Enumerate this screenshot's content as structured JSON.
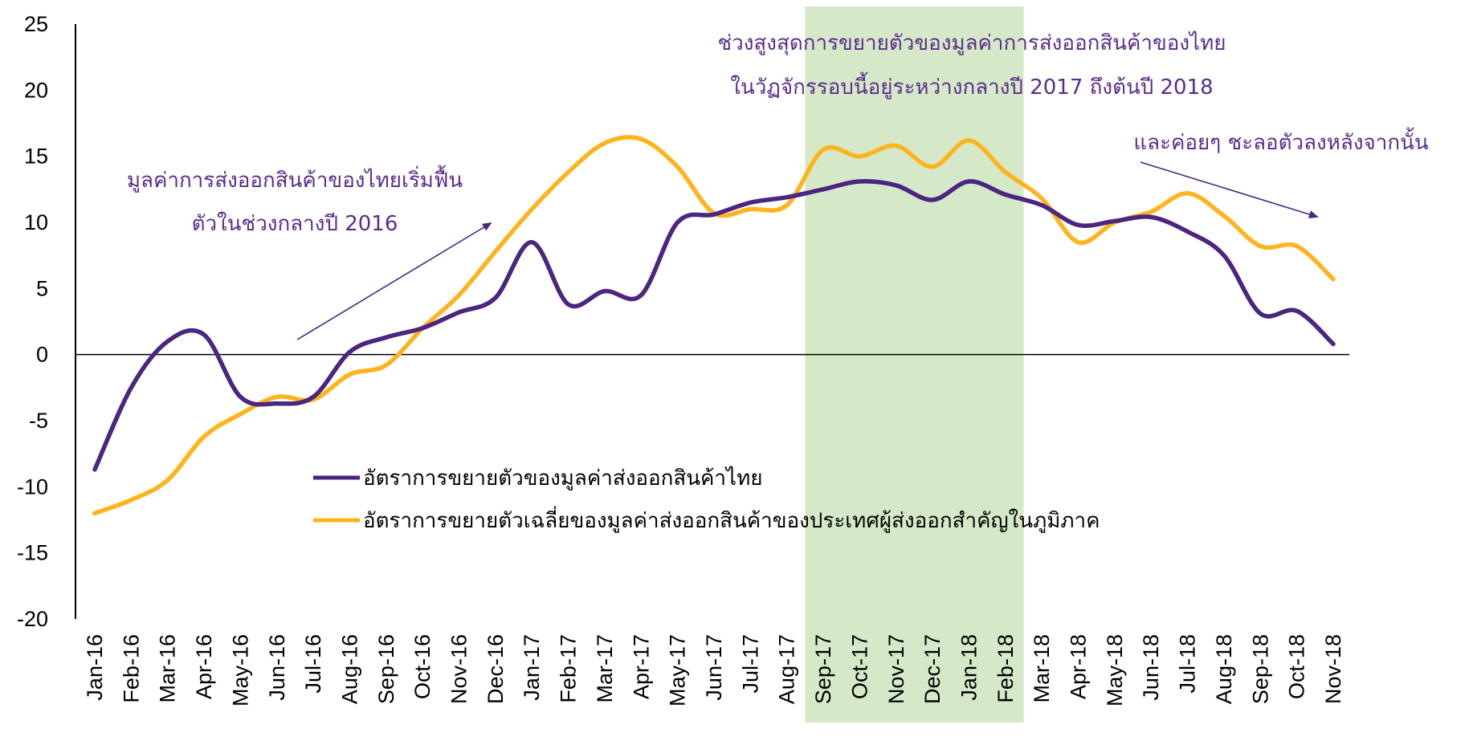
{
  "chart_data": {
    "type": "line",
    "categories": [
      "Jan-16",
      "Feb-16",
      "Mar-16",
      "Apr-16",
      "May-16",
      "Jun-16",
      "Jul-16",
      "Aug-16",
      "Sep-16",
      "Oct-16",
      "Nov-16",
      "Dec-16",
      "Jan-17",
      "Feb-17",
      "Mar-17",
      "Apr-17",
      "May-17",
      "Jun-17",
      "Jul-17",
      "Aug-17",
      "Sep-17",
      "Oct-17",
      "Nov-17",
      "Dec-17",
      "Jan-18",
      "Feb-18",
      "Mar-18",
      "Apr-18",
      "May-18",
      "Jun-18",
      "Jul-18",
      "Aug-18",
      "Sep-18",
      "Oct-18",
      "Nov-18"
    ],
    "series": [
      {
        "name": "อัตราการขยายตัวของมูลค่าส่งออกสินค้าไทย",
        "color": "#4B2580",
        "values": [
          -8.7,
          -2.5,
          1.0,
          1.5,
          -3.2,
          -3.7,
          -3.2,
          0.2,
          1.3,
          2.0,
          3.2,
          4.3,
          8.5,
          3.8,
          4.8,
          4.5,
          10.0,
          10.6,
          11.5,
          11.9,
          12.5,
          13.1,
          12.8,
          11.7,
          13.1,
          12.1,
          11.3,
          9.8,
          10.1,
          10.4,
          9.3,
          7.5,
          3.1,
          3.3,
          0.8
        ]
      },
      {
        "name": "อัตราการขยายตัวเฉลี่ยของมูลค่าส่งออกสินค้าของประเทศผู้ส่งออกสำคัญในภูมิภาค",
        "color": "#FFB41E",
        "values": [
          -12.0,
          -11.0,
          -9.5,
          -6.2,
          -4.5,
          -3.2,
          -3.4,
          -1.5,
          -0.8,
          2.0,
          4.5,
          7.8,
          11.0,
          13.8,
          16.0,
          16.3,
          14.2,
          10.7,
          11.0,
          11.3,
          15.5,
          15.0,
          15.8,
          14.2,
          16.2,
          13.8,
          11.8,
          8.5,
          10.0,
          10.8,
          12.2,
          10.5,
          8.2,
          8.2,
          5.7
        ]
      }
    ],
    "ylim": [
      -20,
      25
    ],
    "y_ticks": [
      25,
      20,
      15,
      10,
      5,
      0,
      -5,
      -10,
      -15,
      -20
    ],
    "highlight": {
      "from": "Sep-17",
      "to": "Feb-18",
      "color": "#D5E9C8"
    },
    "annotations": {
      "peak_line1": "ช่วงสูงสุดการขยายตัวของมูลค่าการส่งออกสินค้าของไทย",
      "peak_line2": "ในวัฏจักรรอบนี้อยู่ระหว่างกลางปี 2017 ถึงต้นปี 2018",
      "recovery_line1": "มูลค่าการส่งออกสินค้าของไทยเริ่มฟื้น",
      "recovery_line2": "ตัวในช่วงกลางปี  2016",
      "decline_line1": "และค่อยๆ ชะลอตัวลงหลังจากนั้น"
    },
    "annotation_color": "#5B2C8C",
    "legend_position": "center-left"
  }
}
